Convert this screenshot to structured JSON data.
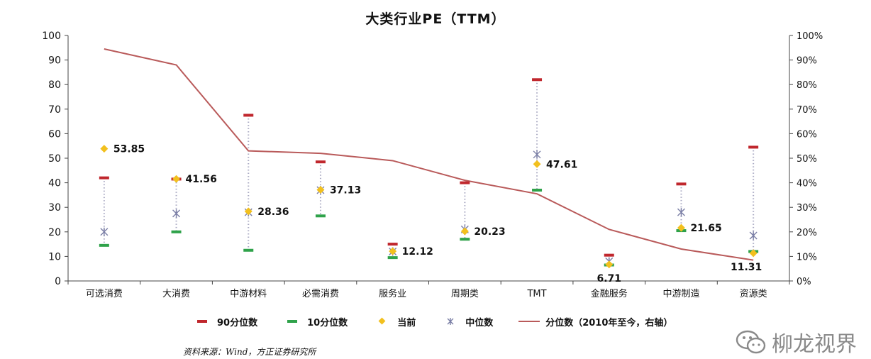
{
  "chart_data": {
    "type": "scatter",
    "title": "大类行业PE（TTM）",
    "categories": [
      "可选消费",
      "大消费",
      "中游材料",
      "必需消费",
      "服务业",
      "周期类",
      "TMT",
      "金融服务",
      "中游制造",
      "资源类"
    ],
    "left_ylim": [
      0,
      100
    ],
    "left_ticks": [
      0,
      10,
      20,
      30,
      40,
      50,
      60,
      70,
      80,
      90,
      100
    ],
    "right_ylim": [
      0,
      100
    ],
    "right_ticks": [
      "0%",
      "10%",
      "20%",
      "30%",
      "40%",
      "50%",
      "60%",
      "70%",
      "80%",
      "90%",
      "100%"
    ],
    "grid": false,
    "legend_position": "bottom",
    "series": [
      {
        "name": "90分位数",
        "color": "#c0272d",
        "values": [
          42,
          41.5,
          67.5,
          48.5,
          15,
          40,
          82,
          10.5,
          39.5,
          54.5
        ]
      },
      {
        "name": "10分位数",
        "color": "#2fa24a",
        "values": [
          14.5,
          20,
          12.5,
          26.5,
          9.5,
          17,
          37,
          6.5,
          20.5,
          12
        ]
      },
      {
        "name": "当前",
        "color": "#f2c01e",
        "values": [
          53.85,
          41.56,
          28.36,
          37.13,
          12.12,
          20.23,
          47.61,
          6.71,
          21.65,
          11.31
        ],
        "labels": [
          "53.85",
          "41.56",
          "28.36",
          "37.13",
          "12.12",
          "20.23",
          "47.61",
          "6.71",
          "21.65",
          "11.31"
        ]
      },
      {
        "name": "中位数",
        "color": "#7b7fa6",
        "values": [
          20,
          27.5,
          28,
          37,
          12,
          21,
          51.5,
          8,
          28,
          18.5
        ]
      },
      {
        "name": "分位数（2010年至今，右轴）",
        "color": "#b95a5a",
        "axis": "right",
        "values": [
          94.5,
          88,
          53,
          52,
          49,
          41,
          35.5,
          21,
          13,
          8.5
        ]
      }
    ]
  },
  "source": "资料来源：Wind，方正证券研究所",
  "watermark": "柳龙视界"
}
